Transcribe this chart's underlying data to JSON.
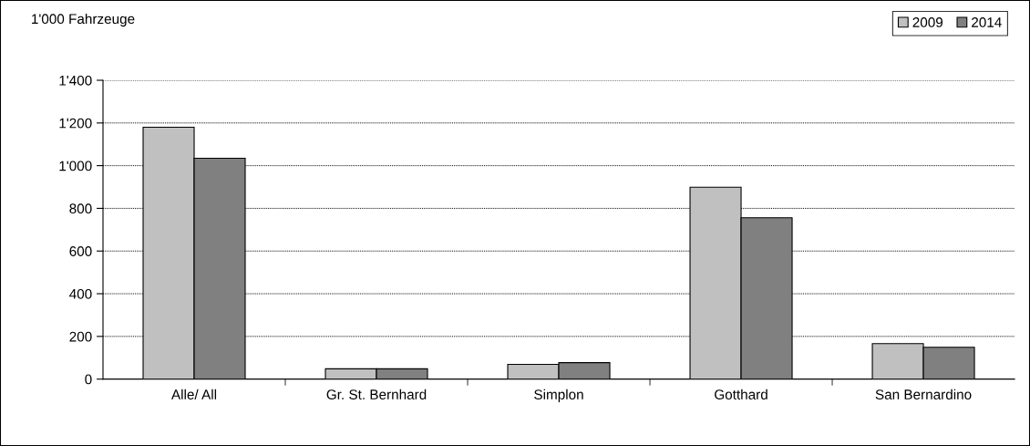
{
  "chart_data": {
    "type": "bar",
    "ylabel": "1'000 Fahrzeuge",
    "categories": [
      "Alle/ All",
      "Gr. St. Bernhard",
      "Simplon",
      "Gotthard",
      "San Bernardino"
    ],
    "series": [
      {
        "name": "2009",
        "color": "#c0c0c0",
        "values": [
          1180,
          48,
          69,
          899,
          166
        ]
      },
      {
        "name": "2014",
        "color": "#808080",
        "values": [
          1035,
          48,
          77,
          756,
          149
        ]
      }
    ],
    "ylim": [
      0,
      1400
    ],
    "yticks": [
      0,
      {
        "value": 200,
        "label": "200"
      },
      {
        "value": 400,
        "label": "400"
      },
      {
        "value": 600,
        "label": "600"
      },
      {
        "value": 800,
        "label": "800"
      },
      {
        "value": 1000,
        "label": "1'000"
      },
      {
        "value": 1200,
        "label": "1'200"
      },
      {
        "value": 1400,
        "label": "1'400"
      }
    ],
    "grid": "y",
    "legend": "top right"
  }
}
